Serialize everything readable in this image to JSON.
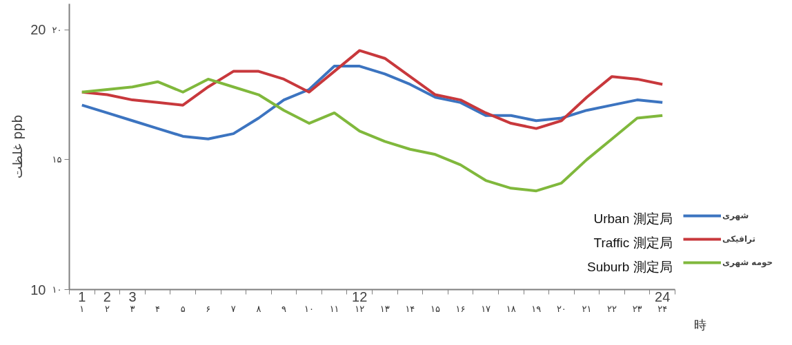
{
  "chart_data": {
    "type": "line",
    "xlabel": "時",
    "ylabel": "غلظت ppb",
    "x": [
      1,
      2,
      3,
      4,
      5,
      6,
      7,
      8,
      9,
      10,
      11,
      12,
      13,
      14,
      15,
      16,
      17,
      18,
      19,
      20,
      21,
      22,
      23,
      24
    ],
    "xlim": [
      0.5,
      24.5
    ],
    "xticks": [
      {
        "value": 1,
        "label": "۱"
      },
      {
        "value": 2,
        "label": "۲"
      },
      {
        "value": 3,
        "label": "۳"
      },
      {
        "value": 4,
        "label": "۴"
      },
      {
        "value": 5,
        "label": "۵"
      },
      {
        "value": 6,
        "label": "۶"
      },
      {
        "value": 7,
        "label": "۷"
      },
      {
        "value": 8,
        "label": "۸"
      },
      {
        "value": 9,
        "label": "۹"
      },
      {
        "value": 10,
        "label": "۱۰"
      },
      {
        "value": 11,
        "label": "۱۱"
      },
      {
        "value": 12,
        "label": "۱۲"
      },
      {
        "value": 13,
        "label": "۱۳"
      },
      {
        "value": 14,
        "label": "۱۴"
      },
      {
        "value": 15,
        "label": "۱۵"
      },
      {
        "value": 16,
        "label": "۱۶"
      },
      {
        "value": 17,
        "label": "۱۷"
      },
      {
        "value": 18,
        "label": "۱۸"
      },
      {
        "value": 19,
        "label": "۱۹"
      },
      {
        "value": 20,
        "label": "۲۰"
      },
      {
        "value": 21,
        "label": "۲۱"
      },
      {
        "value": 22,
        "label": "۲۲"
      },
      {
        "value": 23,
        "label": "۲۳"
      },
      {
        "value": 24,
        "label": "۲۴"
      }
    ],
    "x2lim": [
      0.5,
      24.5
    ],
    "x2ticks": [
      1,
      2,
      3,
      12,
      24
    ],
    "ylim": [
      10,
      21
    ],
    "yticks": [
      10,
      20
    ],
    "y2lim": [
      10,
      21
    ],
    "y2ticks": [
      {
        "value": 10,
        "label": "۱۰"
      },
      {
        "value": 15,
        "label": "۱۵"
      },
      {
        "value": 20,
        "label": "۲۰"
      }
    ],
    "grid": false,
    "legend": "right",
    "marker": "none",
    "line_style": "solid",
    "series": [
      {
        "name": "شهری",
        "color": "#3c74c0",
        "values": [
          17.1,
          16.8,
          16.5,
          16.2,
          15.9,
          15.8,
          16.0,
          16.6,
          17.3,
          17.7,
          18.6,
          18.6,
          18.3,
          17.9,
          17.4,
          17.2,
          16.7,
          16.7,
          16.5,
          16.6,
          16.9,
          17.1,
          17.3,
          17.2
        ]
      },
      {
        "name": "ترافیکی",
        "color": "#c8383c",
        "values": [
          17.6,
          17.5,
          17.3,
          17.2,
          17.1,
          17.8,
          18.4,
          18.4,
          18.1,
          17.6,
          18.4,
          19.2,
          18.9,
          18.2,
          17.5,
          17.3,
          16.8,
          16.4,
          16.2,
          16.5,
          17.4,
          18.2,
          18.1,
          17.9
        ]
      },
      {
        "name": "حومه شهری",
        "color": "#80b83c",
        "values": [
          17.6,
          17.7,
          17.8,
          18.0,
          17.6,
          18.1,
          17.8,
          17.5,
          16.9,
          16.4,
          16.8,
          16.1,
          15.7,
          15.4,
          15.2,
          14.8,
          14.2,
          13.9,
          13.8,
          14.1,
          15.0,
          15.8,
          16.6,
          16.7
        ]
      }
    ],
    "annotations": [
      "Urban 測定局",
      "Traffic 測定局",
      "Suburb 測定局"
    ]
  }
}
